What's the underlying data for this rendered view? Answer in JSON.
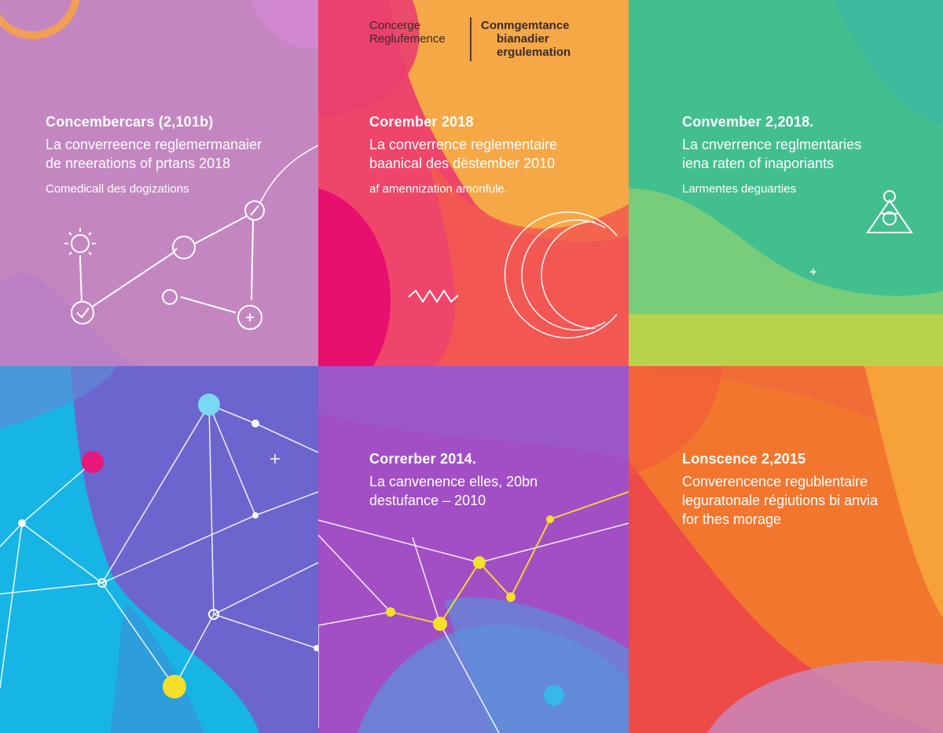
{
  "logo": {
    "left_lines": [
      "Concerge",
      "Reglufemence"
    ],
    "right_lines": [
      "Conmgemtance",
      "bianadier",
      "ergulemation"
    ]
  },
  "panels": [
    {
      "headline": "Concembercars (2,101b)",
      "lines": [
        "La converreence reglemermanaier",
        "de nreerations of prtans 2018"
      ],
      "small": "Comedicall des dogizations",
      "color": "#c386c0"
    },
    {
      "headline": "Corember 2018",
      "lines": [
        "La converrence reglementaire",
        "baanical des dëstember 2010"
      ],
      "small": "af amennization amonfule.",
      "color": "#ee3f6c"
    },
    {
      "headline": "Convember 2,2018.",
      "lines": [
        "La cnverrence reglmentaries",
        "iena raten of inaporiants"
      ],
      "small": "Larmentes deguarties",
      "color": "#4cc58a"
    },
    {
      "headline": "",
      "lines": [],
      "small": "",
      "color": "#2aa6dd"
    },
    {
      "headline": "Correrber 2014.",
      "lines": [
        "La canvenence elles, 20bn",
        "destufance – 2010"
      ],
      "small": "",
      "color": "#a553c3"
    },
    {
      "headline": "Lonscence 2,2015",
      "lines": [
        "Converencence regublentaire",
        "leguratonale régiutions bi anvia",
        "for thes morage"
      ],
      "small": "",
      "color": "#f07a3c"
    }
  ]
}
